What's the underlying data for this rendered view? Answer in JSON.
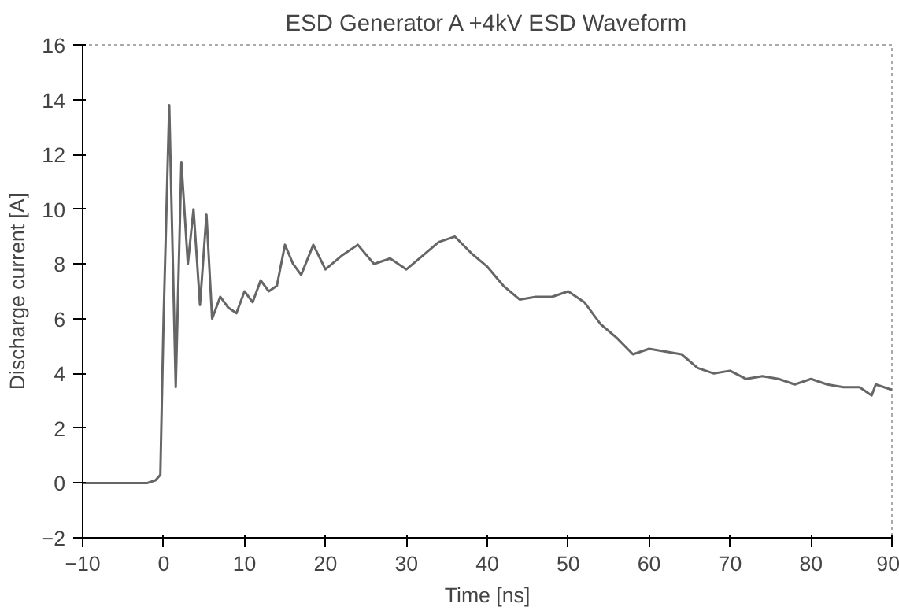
{
  "chart_data": {
    "type": "line",
    "title": "ESD Generator A +4kV ESD Waveform",
    "xlabel": "Time [ns]",
    "ylabel": "Discharge current [A]",
    "x": [
      -10,
      -8,
      -6,
      -4,
      -2,
      -1,
      -0.4,
      0,
      0.7,
      1.5,
      2.2,
      3,
      3.7,
      4.5,
      5.3,
      6,
      7,
      8,
      9,
      10,
      11,
      12,
      13,
      14,
      15,
      16,
      17,
      18.5,
      20,
      22,
      24,
      26,
      28,
      30,
      32,
      34,
      36,
      38,
      40,
      42,
      44,
      46,
      48,
      50,
      52,
      54,
      56,
      58,
      60,
      62,
      64,
      66,
      68,
      70,
      72,
      74,
      76,
      78,
      80,
      82,
      84,
      86,
      87.5,
      88,
      90
    ],
    "series": [
      {
        "color": "#666666",
        "values": [
          0,
          0,
          0,
          0,
          0,
          0.1,
          0.3,
          6,
          13.8,
          3.5,
          11.7,
          8,
          10,
          6.5,
          9.8,
          6,
          6.8,
          6.4,
          6.2,
          7,
          6.6,
          7.4,
          7,
          7.2,
          8.7,
          8,
          7.6,
          8.7,
          7.8,
          8.3,
          8.7,
          8,
          8.2,
          7.8,
          8.3,
          8.8,
          9,
          8.4,
          7.9,
          7.2,
          6.7,
          6.8,
          6.8,
          7,
          6.6,
          5.8,
          5.3,
          4.7,
          4.9,
          4.8,
          4.7,
          4.2,
          4,
          4.1,
          3.8,
          3.9,
          3.8,
          3.6,
          3.8,
          3.6,
          3.5,
          3.5,
          3.2,
          3.6,
          3.4
        ]
      }
    ],
    "xlim": [
      -10,
      90
    ],
    "ylim": [
      -2,
      16
    ],
    "xticks": [
      -10,
      0,
      10,
      20,
      30,
      40,
      50,
      60,
      70,
      80,
      90
    ],
    "yticks": [
      -2,
      0,
      2,
      4,
      6,
      8,
      10,
      12,
      14,
      16
    ],
    "grid": false,
    "marker": "none",
    "line_style": "solid"
  }
}
